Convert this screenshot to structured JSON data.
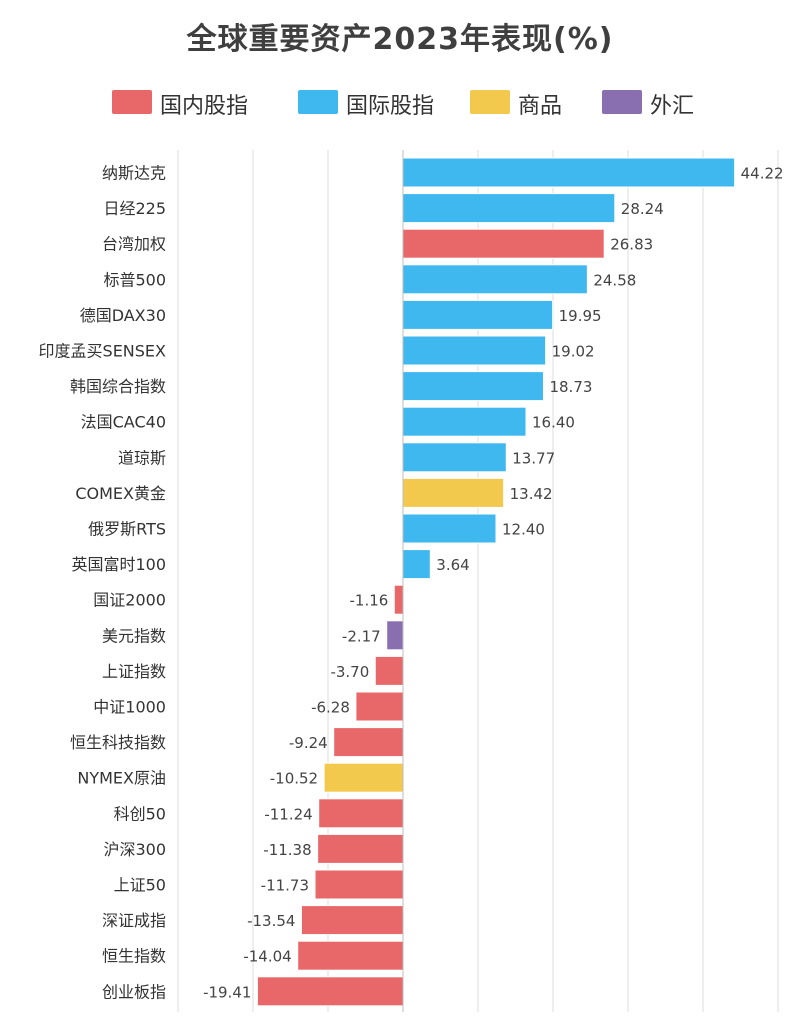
{
  "chart_data": {
    "type": "bar",
    "orientation": "horizontal",
    "title": "全球重要资产2023年表现(%)",
    "legend": [
      {
        "name": "国内股指",
        "color": "#e8686a"
      },
      {
        "name": "国际股指",
        "color": "#3fb8ef"
      },
      {
        "name": "商品",
        "color": "#f2c94c"
      },
      {
        "name": "外汇",
        "color": "#8a6fb0"
      }
    ],
    "legend_position": "top",
    "grid": true,
    "xlim": [
      -30,
      50
    ],
    "categories": [
      "纳斯达克",
      "日经225",
      "台湾加权",
      "标普500",
      "德国DAX30",
      "印度孟买SENSEX",
      "韩国综合指数",
      "法国CAC40",
      "道琼斯",
      "COMEX黄金",
      "俄罗斯RTS",
      "英国富时100",
      "国证2000",
      "美元指数",
      "上证指数",
      "中证1000",
      "恒生科技指数",
      "NYMEX原油",
      "科创50",
      "沪深300",
      "上证50",
      "深证成指",
      "恒生指数",
      "创业板指"
    ],
    "values": [
      44.22,
      28.24,
      26.83,
      24.58,
      19.95,
      19.02,
      18.73,
      16.4,
      13.77,
      13.42,
      12.4,
      3.64,
      -1.16,
      -2.17,
      -3.7,
      -6.28,
      -9.24,
      -10.52,
      -11.24,
      -11.38,
      -11.73,
      -13.54,
      -14.04,
      -19.41
    ],
    "value_labels": [
      "44.22",
      "28.24",
      "26.83",
      "24.58",
      "19.95",
      "19.02",
      "18.73",
      "16.40",
      "13.77",
      "13.42",
      "12.40",
      "3.64",
      "-1.16",
      "-2.17",
      "-3.70",
      "-6.28",
      "-9.24",
      "-10.52",
      "-11.24",
      "-11.38",
      "-11.73",
      "-13.54",
      "-14.04",
      "-19.41"
    ],
    "groups": [
      "国际股指",
      "国际股指",
      "国内股指",
      "国际股指",
      "国际股指",
      "国际股指",
      "国际股指",
      "国际股指",
      "国际股指",
      "商品",
      "国际股指",
      "国际股指",
      "国内股指",
      "外汇",
      "国内股指",
      "国内股指",
      "国内股指",
      "商品",
      "国内股指",
      "国内股指",
      "国内股指",
      "国内股指",
      "国内股指",
      "国内股指"
    ]
  }
}
